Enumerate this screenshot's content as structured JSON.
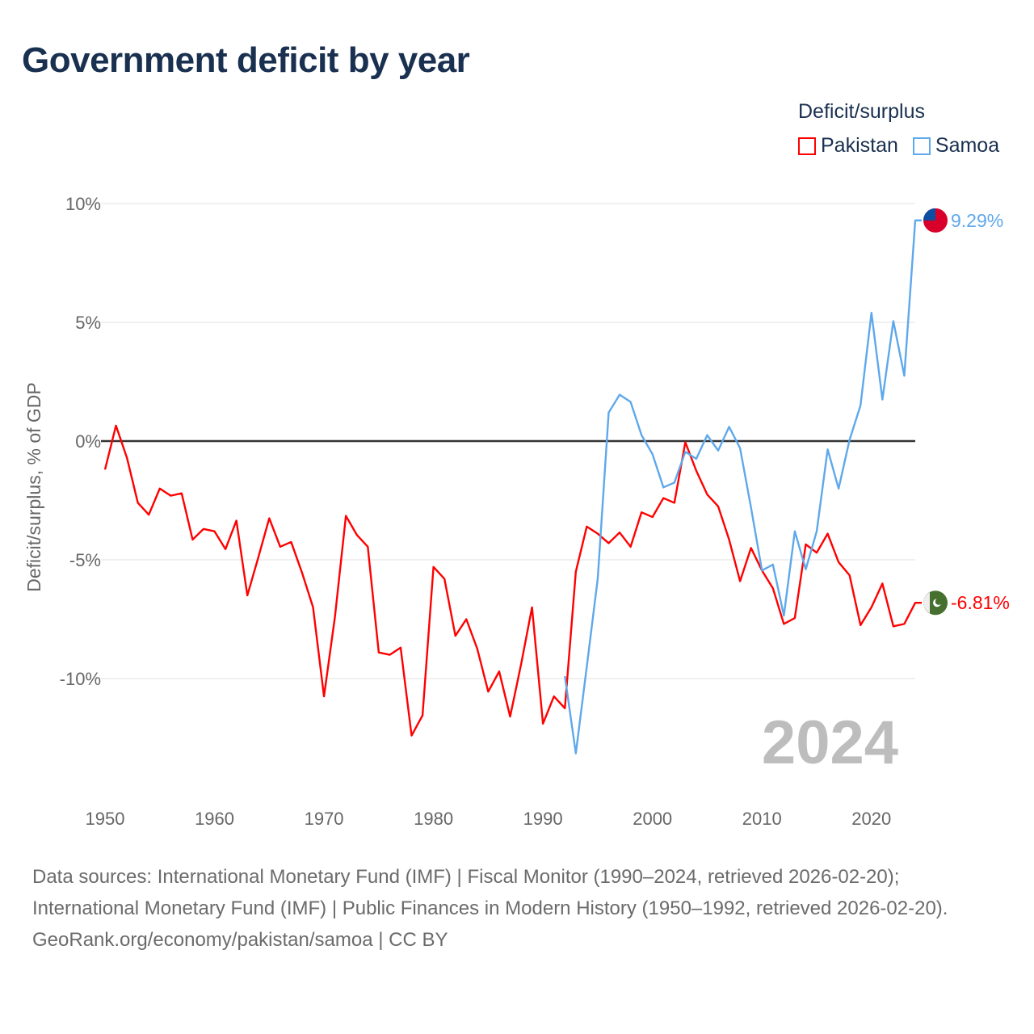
{
  "title": "Government deficit by year",
  "legend": {
    "title": "Deficit/surplus",
    "items": [
      {
        "label": "Pakistan",
        "color": "#ff0000"
      },
      {
        "label": "Samoa",
        "color": "#5ea8ec"
      }
    ]
  },
  "chart_data": {
    "type": "line",
    "title": "Government deficit by year",
    "xlabel": "",
    "ylabel": "Deficit/surplus, % of GDP",
    "xlim": [
      1950,
      2024
    ],
    "ylim": [
      -14,
      10
    ],
    "x_ticks": [
      1950,
      1960,
      1970,
      1980,
      1990,
      2000,
      2010,
      2020
    ],
    "x_tick_labels": [
      "1950",
      "1960",
      "1970",
      "1980",
      "1990",
      "2000",
      "2010",
      "2020"
    ],
    "y_ticks": [
      10,
      5,
      0,
      -5,
      -10
    ],
    "y_tick_labels": [
      "10%",
      "5%",
      "0%",
      "-5%",
      "-10%"
    ],
    "year_label": "2024",
    "grid": true,
    "legend_position": "top-right",
    "series": [
      {
        "name": "Pakistan",
        "color": "#ff0000",
        "start_year": 1950,
        "end_label": "-6.81%",
        "values": [
          -1.2,
          0.65,
          -0.7,
          -2.6,
          -3.1,
          -2.0,
          -2.3,
          -2.2,
          -4.15,
          -3.7,
          -3.8,
          -4.55,
          -3.35,
          -6.5,
          -4.9,
          -3.25,
          -4.45,
          -4.25,
          -5.55,
          -7.0,
          -10.75,
          -7.4,
          -3.15,
          -3.95,
          -4.45,
          -8.9,
          -9.0,
          -8.7,
          -12.4,
          -11.55,
          -5.3,
          -5.8,
          -8.2,
          -7.5,
          -8.75,
          -10.55,
          -9.7,
          -11.6,
          -9.4,
          -7.0,
          -11.9,
          -10.75,
          -11.25,
          -5.5,
          -3.6,
          -3.9,
          -4.3,
          -3.85,
          -4.45,
          -3.0,
          -3.2,
          -2.4,
          -2.6,
          -0.05,
          -1.25,
          -2.25,
          -2.75,
          -4.15,
          -5.9,
          -4.5,
          -5.45,
          -6.2,
          -7.7,
          -7.45,
          -4.35,
          -4.7,
          -3.9,
          -5.1,
          -5.65,
          -7.75,
          -7.0,
          -6.0,
          -7.8,
          -7.7,
          -6.81
        ]
      },
      {
        "name": "Samoa",
        "color": "#5ea8ec",
        "start_year": 1992,
        "end_label": "9.29%",
        "values": [
          -9.9,
          -13.15,
          -9.5,
          -5.8,
          1.2,
          1.95,
          1.65,
          0.25,
          -0.55,
          -1.95,
          -1.75,
          -0.45,
          -0.75,
          0.25,
          -0.4,
          0.6,
          -0.3,
          -2.8,
          -5.45,
          -5.2,
          -7.35,
          -3.8,
          -5.4,
          -3.8,
          -0.35,
          -2.0,
          0.05,
          1.5,
          5.4,
          1.75,
          5.05,
          2.75,
          9.29
        ]
      }
    ]
  },
  "source": {
    "line1": "Data sources: International Monetary Fund (IMF) | Fiscal Monitor (1990–2024, retrieved 2026-02-20); International Monetary Fund (IMF) | Public Finances in Modern History (1950–1992, retrieved 2026-02-20).",
    "line2": "GeoRank.org/economy/pakistan/samoa | CC BY"
  }
}
